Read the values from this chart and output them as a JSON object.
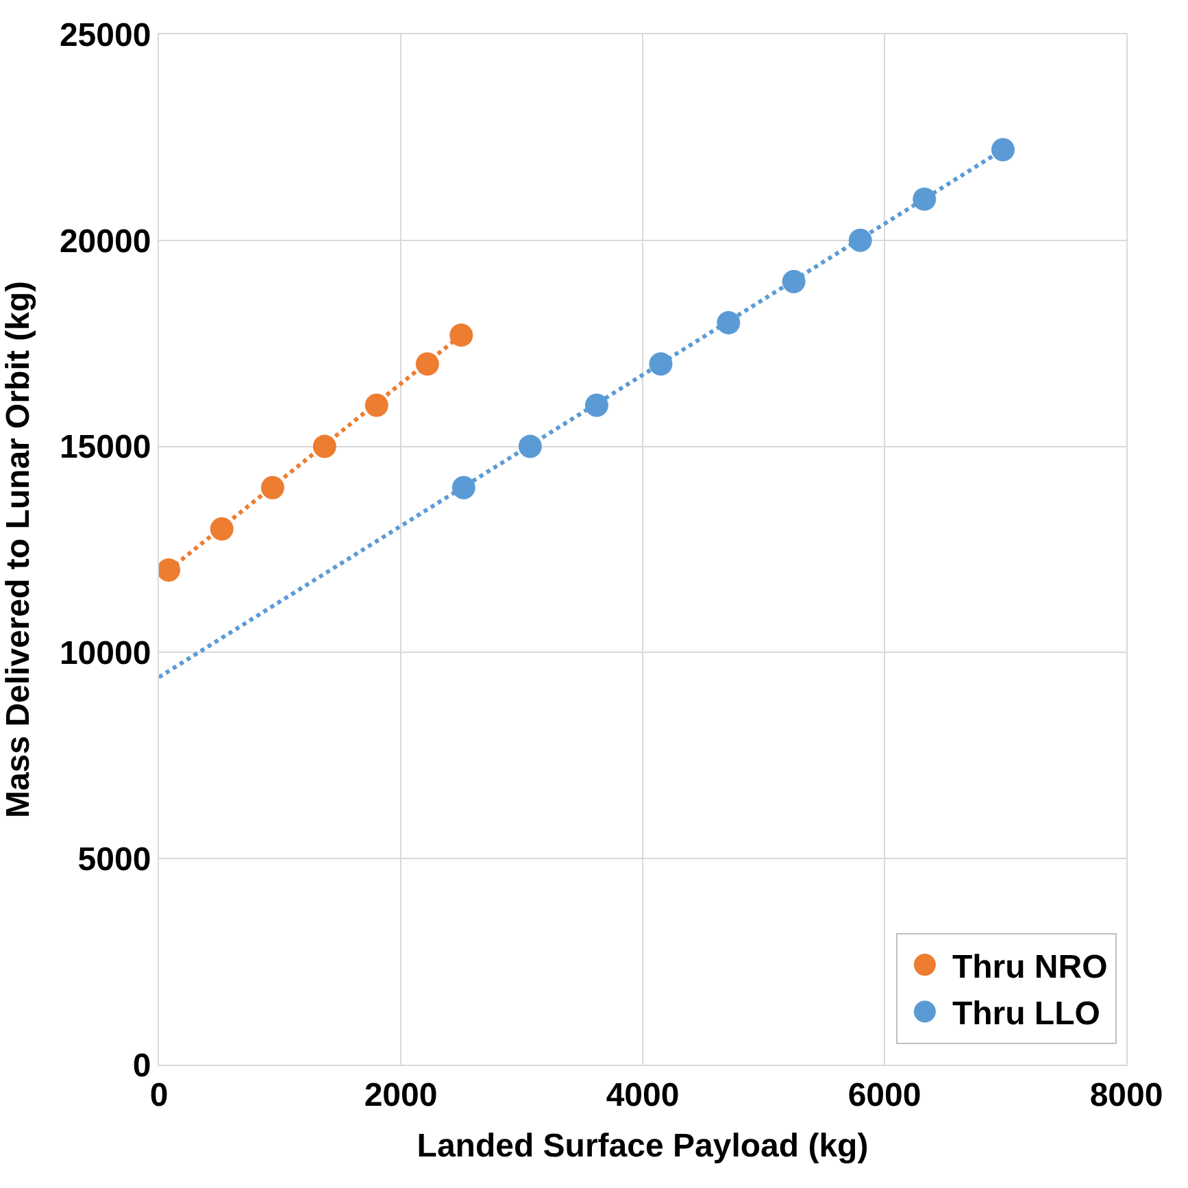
{
  "chart_data": {
    "type": "scatter",
    "xlabel": "Landed Surface Payload (kg)",
    "ylabel": "Mass Delivered to Lunar Orbit (kg)",
    "xlim": [
      0,
      8000
    ],
    "xticks": [
      0,
      2000,
      4000,
      6000,
      8000
    ],
    "ylim": [
      0,
      25000
    ],
    "yticks": [
      0,
      5000,
      10000,
      15000,
      20000,
      25000
    ],
    "grid": true,
    "legend": "bottom right",
    "series": [
      {
        "name": "Thru NRO",
        "marker": "circle",
        "color": "#ed7d31",
        "x": [
          80,
          520,
          940,
          1370,
          1800,
          2220,
          2500
        ],
        "values": [
          12000,
          13000,
          14000,
          15000,
          16000,
          17000,
          17700
        ]
      },
      {
        "name": "Thru LLO",
        "marker": "circle",
        "color": "#5b9bd5",
        "x": [
          2520,
          3070,
          3620,
          4150,
          4710,
          5250,
          5800,
          6330,
          6980
        ],
        "values": [
          14000,
          15000,
          16000,
          17000,
          18000,
          19000,
          20000,
          21000,
          22200
        ]
      },
      {
        "type": "line",
        "marker": "none",
        "line_style": "dotted",
        "color": "#ed7d31",
        "x": [
          80,
          2500
        ],
        "values": [
          12000,
          17700
        ]
      },
      {
        "type": "line",
        "marker": "none",
        "line_style": "dotted",
        "color": "#5b9bd5",
        "x": [
          0,
          6980
        ],
        "values": [
          9400,
          22200
        ]
      }
    ]
  }
}
